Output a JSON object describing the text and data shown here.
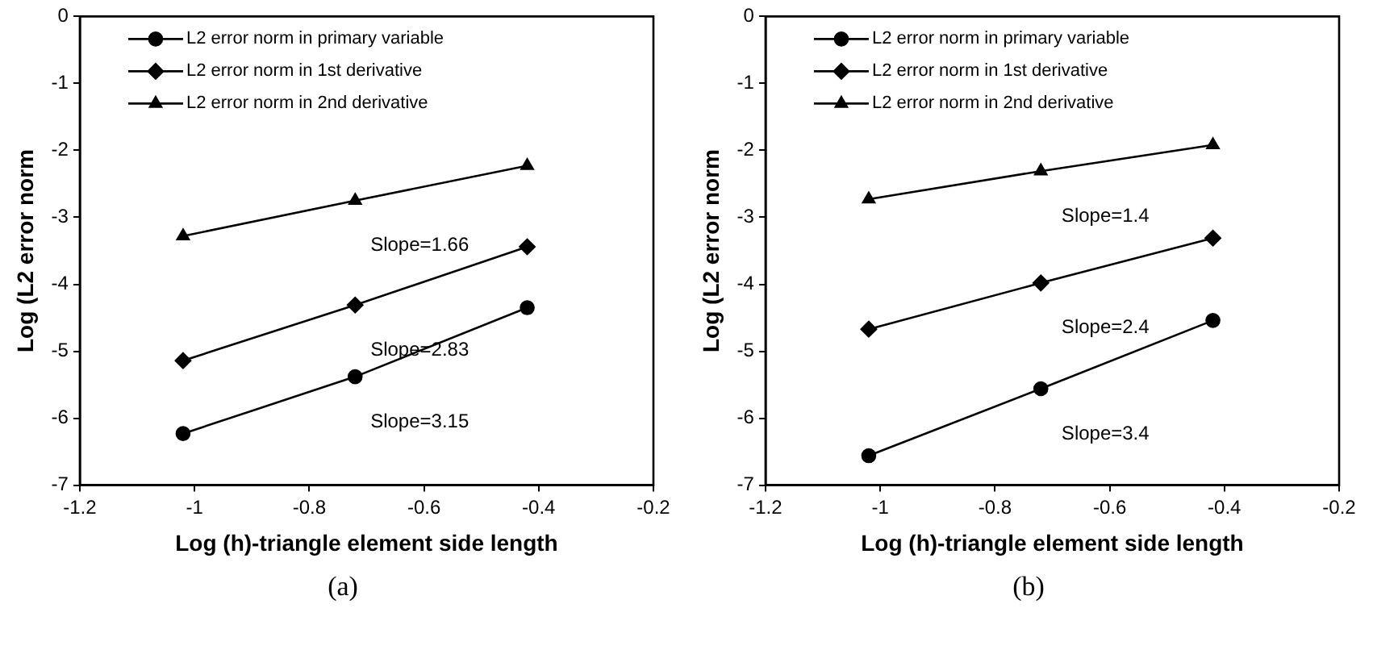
{
  "chart_data": [
    {
      "type": "line",
      "xlabel": "Log (h)-triangle element side length",
      "ylabel": "Log (L2 error norm",
      "x": [
        -1.02,
        -0.72,
        -0.42
      ],
      "xlim": [
        -1.2,
        -0.2
      ],
      "xticks": [
        -1.2,
        -1,
        -0.8,
        -0.6,
        -0.4,
        -0.2
      ],
      "ylim": [
        -7,
        0
      ],
      "yticks": [
        -7,
        -6,
        -5,
        -4,
        -3,
        -2,
        -1,
        0
      ],
      "grid": false,
      "legend": "top left",
      "line_style": "solid",
      "series": [
        {
          "name": "L2 error norm in primary variable",
          "color": "#000000",
          "marker": "circle",
          "values": [
            -6.23,
            -5.38,
            -4.35
          ]
        },
        {
          "name": "L2 error norm in 1st derivative",
          "color": "#000000",
          "marker": "diamond",
          "values": [
            -5.14,
            -4.31,
            -3.44
          ]
        },
        {
          "name": "L2 error norm in 2nd derivative",
          "color": "#000000",
          "marker": "triangle",
          "values": [
            -3.28,
            -2.75,
            -2.23
          ]
        }
      ],
      "annotations": [
        "Slope=1.66",
        "Slope=2.83",
        "Slope=3.15",
        "(a)"
      ]
    },
    {
      "type": "line",
      "xlabel": "Log (h)-triangle element side length",
      "ylabel": "Log (L2 error norm",
      "x": [
        -1.02,
        -0.72,
        -0.42
      ],
      "xlim": [
        -1.2,
        -0.2
      ],
      "xticks": [
        -1.2,
        -1,
        -0.8,
        -0.6,
        -0.4,
        -0.2
      ],
      "ylim": [
        -7,
        0
      ],
      "yticks": [
        -7,
        -6,
        -5,
        -4,
        -3,
        -2,
        -1,
        0
      ],
      "grid": false,
      "legend": "top left",
      "line_style": "solid",
      "series": [
        {
          "name": "L2 error norm in primary variable",
          "color": "#000000",
          "marker": "circle",
          "values": [
            -6.56,
            -5.56,
            -4.54
          ]
        },
        {
          "name": "L2 error norm in 1st derivative",
          "color": "#000000",
          "marker": "diamond",
          "values": [
            -4.67,
            -3.98,
            -3.31
          ]
        },
        {
          "name": "L2 error norm in 2nd derivative",
          "color": "#000000",
          "marker": "triangle",
          "values": [
            -2.73,
            -2.31,
            -1.92
          ]
        }
      ],
      "annotations": [
        "Slope=1.4",
        "Slope=2.4",
        "Slope=3.4",
        "(b)"
      ]
    }
  ]
}
